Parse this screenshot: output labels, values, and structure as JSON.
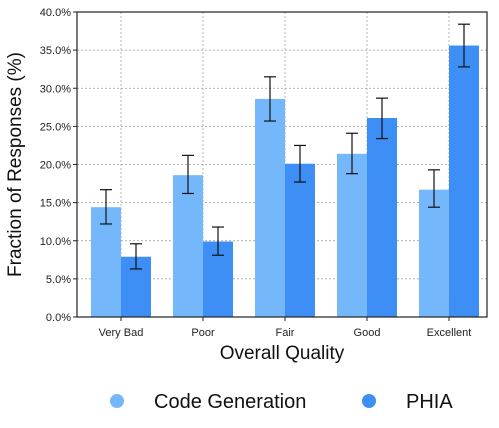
{
  "chart_data": {
    "type": "bar",
    "categories": [
      "Very Bad",
      "Poor",
      "Fair",
      "Good",
      "Excellent"
    ],
    "series": [
      {
        "name": "Code Generation",
        "color": "#74b8fb",
        "values": [
          14.4,
          18.6,
          28.6,
          21.4,
          16.7
        ],
        "err_low": [
          12.2,
          16.2,
          25.7,
          18.8,
          14.4
        ],
        "err_high": [
          16.7,
          21.2,
          31.5,
          24.1,
          19.3
        ]
      },
      {
        "name": "PHIA",
        "color": "#3d8ff5",
        "values": [
          7.9,
          9.9,
          20.1,
          26.1,
          35.6
        ],
        "err_low": [
          6.3,
          8.1,
          17.7,
          23.4,
          32.8
        ],
        "err_high": [
          9.6,
          11.8,
          22.5,
          28.7,
          38.4
        ]
      }
    ],
    "xlabel": "Overall Quality",
    "ylabel": "Fraction of Responses (%)",
    "ylim": [
      0,
      40
    ],
    "yticks": [
      "0.0%",
      "5.0%",
      "10.0%",
      "15.0%",
      "20.0%",
      "25.0%",
      "30.0%",
      "35.0%",
      "40.0%"
    ],
    "grid": true,
    "legend_placement": "bottom"
  }
}
